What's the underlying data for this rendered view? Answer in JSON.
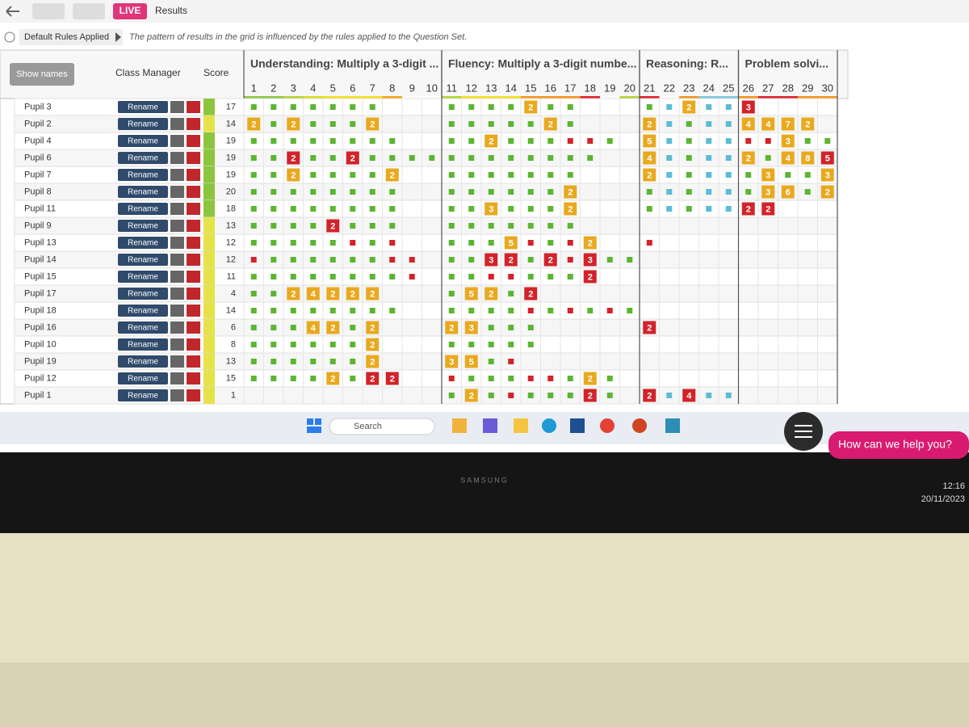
{
  "top_bar": {
    "live": "LIVE",
    "tab": "Results"
  },
  "rules": {
    "badge": "Default Rules Applied",
    "note": "The pattern of results in the grid is influenced by the rules applied to the Question Set."
  },
  "columns": {
    "show_names": "Show names",
    "class_manager": "Class Manager",
    "score": "Score"
  },
  "rename_label": "Rename",
  "groups": [
    {
      "title": "Understanding: Multiply a 3-digit ...",
      "questions": [
        {
          "number": 1,
          "color": "#8cc63f"
        },
        {
          "number": 2,
          "color": "#8cc63f"
        },
        {
          "number": 3,
          "color": "#b5d334"
        },
        {
          "number": 4,
          "color": "#d6e021"
        },
        {
          "number": 5,
          "color": "#f2e01e"
        },
        {
          "number": 6,
          "color": "#f2e01e"
        },
        {
          "number": 7,
          "color": "#f2e01e"
        },
        {
          "number": 8,
          "color": "#f7a21b"
        },
        {
          "number": 9,
          "color": "#ffffff"
        },
        {
          "number": 10,
          "color": "#ffffff"
        }
      ]
    },
    {
      "title": "Fluency: Multiply a 3-digit numbe...",
      "questions": [
        {
          "number": 11,
          "color": "#b5d334"
        },
        {
          "number": 12,
          "color": "#f2e01e"
        },
        {
          "number": 13,
          "color": "#f2e01e"
        },
        {
          "number": 14,
          "color": "#f2e01e"
        },
        {
          "number": 15,
          "color": "#f7941d"
        },
        {
          "number": 16,
          "color": "#f7941d"
        },
        {
          "number": 17,
          "color": "#f7941d"
        },
        {
          "number": 18,
          "color": "#e0202a"
        },
        {
          "number": 19,
          "color": "#ffffff"
        },
        {
          "number": 20,
          "color": "#b5d334"
        }
      ]
    },
    {
      "title": "Reasoning: R...",
      "questions": [
        {
          "number": 21,
          "color": "#e0202a"
        },
        {
          "number": 22,
          "color": "#ffffff"
        },
        {
          "number": 23,
          "color": "#f7941d"
        },
        {
          "number": 24,
          "color": "#7fc8e0"
        },
        {
          "number": 25,
          "color": "#7fc8e0"
        }
      ]
    },
    {
      "title": "Problem solvi...",
      "questions": [
        {
          "number": 26,
          "color": "#f7941d"
        },
        {
          "number": 27,
          "color": "#e0202a"
        },
        {
          "number": 28,
          "color": "#e0202a"
        },
        {
          "number": 29,
          "color": "#f7941d"
        },
        {
          "number": 30,
          "color": "#f7941d"
        }
      ]
    }
  ],
  "rows": [
    {
      "name": "Pupil 3",
      "score": 17,
      "cells": [
        "green",
        "green",
        "green",
        "green",
        "green",
        "green",
        "green",
        null,
        null,
        null,
        "green",
        "green",
        "green",
        "green",
        {
          "value": 2,
          "color": "amber"
        },
        "green",
        "green",
        null,
        null,
        null,
        "green",
        "blue",
        {
          "value": 2,
          "color": "amber"
        },
        "blue",
        "blue",
        {
          "value": 3,
          "color": "red"
        },
        null,
        null,
        null,
        null
      ]
    },
    {
      "name": "Pupil 2",
      "score": 14,
      "cells": [
        {
          "value": 2,
          "color": "amber"
        },
        "green",
        {
          "value": 2,
          "color": "amber"
        },
        "green",
        "green",
        "green",
        {
          "value": 2,
          "color": "amber"
        },
        null,
        null,
        null,
        "green",
        "green",
        "green",
        "green",
        "green",
        {
          "value": 2,
          "color": "amber"
        },
        "green",
        null,
        null,
        null,
        {
          "value": 2,
          "color": "amber"
        },
        "blue",
        "green",
        "blue",
        "blue",
        {
          "value": 4,
          "color": "amber"
        },
        {
          "value": 4,
          "color": "amber"
        },
        {
          "value": 7,
          "color": "amber"
        },
        {
          "value": 2,
          "color": "amber"
        },
        null
      ]
    },
    {
      "name": "Pupil 4",
      "score": 19,
      "cells": [
        "green",
        "green",
        "green",
        "green",
        "green",
        "green",
        "green",
        "green",
        null,
        null,
        "green",
        "green",
        {
          "value": 2,
          "color": "amber"
        },
        "green",
        "green",
        "green",
        "red",
        "red",
        "green",
        null,
        {
          "value": 5,
          "color": "amber"
        },
        "blue",
        "green",
        "blue",
        "blue",
        "red",
        "red",
        {
          "value": 3,
          "color": "amber"
        },
        "green",
        "green"
      ]
    },
    {
      "name": "Pupil 6",
      "score": 19,
      "cells": [
        "green",
        "green",
        {
          "value": 2,
          "color": "red"
        },
        "green",
        "green",
        {
          "value": 2,
          "color": "red"
        },
        "green",
        "green",
        "green",
        "green",
        "green",
        "green",
        "green",
        "green",
        "green",
        "green",
        "green",
        "green",
        null,
        null,
        {
          "value": 4,
          "color": "amber"
        },
        "blue",
        "green",
        "blue",
        "blue",
        {
          "value": 2,
          "color": "amber"
        },
        "green",
        {
          "value": 4,
          "color": "amber"
        },
        {
          "value": 8,
          "color": "amber"
        },
        {
          "value": 5,
          "color": "red"
        }
      ]
    },
    {
      "name": "Pupil 7",
      "score": 19,
      "cells": [
        "green",
        "green",
        {
          "value": 2,
          "color": "amber"
        },
        "green",
        "green",
        "green",
        "green",
        {
          "value": 2,
          "color": "amber"
        },
        null,
        null,
        "green",
        "green",
        "green",
        "green",
        "green",
        "green",
        "green",
        null,
        null,
        null,
        {
          "value": 2,
          "color": "amber"
        },
        "blue",
        "green",
        "blue",
        "blue",
        "green",
        {
          "value": 3,
          "color": "amber"
        },
        "green",
        "green",
        {
          "value": 3,
          "color": "amber"
        }
      ]
    },
    {
      "name": "Pupil 8",
      "score": 20,
      "cells": [
        "green",
        "green",
        "green",
        "green",
        "green",
        "green",
        "green",
        "green",
        null,
        null,
        "green",
        "green",
        "green",
        "green",
        "green",
        "green",
        {
          "value": 2,
          "color": "amber"
        },
        null,
        null,
        null,
        "green",
        "blue",
        "green",
        "blue",
        "blue",
        "green",
        {
          "value": 3,
          "color": "amber"
        },
        {
          "value": 6,
          "color": "amber"
        },
        "green",
        {
          "value": 2,
          "color": "amber"
        }
      ]
    },
    {
      "name": "Pupil 11",
      "score": 18,
      "cells": [
        "green",
        "green",
        "green",
        "green",
        "green",
        "green",
        "green",
        "green",
        null,
        null,
        "green",
        "green",
        {
          "value": 3,
          "color": "amber"
        },
        "green",
        "green",
        "green",
        {
          "value": 2,
          "color": "amber"
        },
        null,
        null,
        null,
        "green",
        "blue",
        "green",
        "blue",
        "blue",
        {
          "value": 2,
          "color": "red"
        },
        {
          "value": 2,
          "color": "red"
        },
        null,
        null,
        null
      ]
    },
    {
      "name": "Pupil 9",
      "score": 13,
      "cells": [
        "green",
        "green",
        "green",
        "green",
        {
          "value": 2,
          "color": "red"
        },
        "green",
        "green",
        "green",
        null,
        null,
        "green",
        "green",
        "green",
        "green",
        "green",
        "green",
        "green",
        null,
        null,
        null,
        null,
        null,
        null,
        null,
        null,
        null,
        null,
        null,
        null,
        null
      ]
    },
    {
      "name": "Pupil 13",
      "score": 12,
      "cells": [
        "green",
        "green",
        "green",
        "green",
        "green",
        "red",
        "green",
        "red",
        null,
        null,
        "green",
        "green",
        "green",
        {
          "value": 5,
          "color": "amber"
        },
        "red",
        "green",
        "red",
        {
          "value": 2,
          "color": "amber"
        },
        null,
        null,
        "red",
        null,
        null,
        null,
        null,
        null,
        null,
        null,
        null,
        null
      ]
    },
    {
      "name": "Pupil 14",
      "score": 12,
      "cells": [
        "red",
        "green",
        "green",
        "green",
        "green",
        "green",
        "green",
        "red",
        "red",
        null,
        "green",
        "green",
        {
          "value": 3,
          "color": "red"
        },
        {
          "value": 2,
          "color": "red"
        },
        "green",
        {
          "value": 2,
          "color": "red"
        },
        "red",
        {
          "value": 3,
          "color": "red"
        },
        "green",
        "green",
        null,
        null,
        null,
        null,
        null,
        null,
        null,
        null,
        null,
        null
      ]
    },
    {
      "name": "Pupil 15",
      "score": 11,
      "cells": [
        "green",
        "green",
        "green",
        "green",
        "green",
        "green",
        "green",
        "green",
        "red",
        null,
        "green",
        "green",
        "red",
        "red",
        "green",
        "green",
        "green",
        {
          "value": 2,
          "color": "red"
        },
        null,
        null,
        null,
        null,
        null,
        null,
        null,
        null,
        null,
        null,
        null,
        null
      ]
    },
    {
      "name": "Pupil 17",
      "score": 4,
      "cells": [
        "green",
        "green",
        {
          "value": 2,
          "color": "amber"
        },
        {
          "value": 4,
          "color": "amber"
        },
        {
          "value": 2,
          "color": "amber"
        },
        {
          "value": 2,
          "color": "amber"
        },
        {
          "value": 2,
          "color": "amber"
        },
        null,
        null,
        null,
        "green",
        {
          "value": 5,
          "color": "amber"
        },
        {
          "value": 2,
          "color": "amber"
        },
        "green",
        {
          "value": 2,
          "color": "red"
        },
        null,
        null,
        null,
        null,
        null,
        null,
        null,
        null,
        null,
        null,
        null,
        null,
        null,
        null,
        null
      ]
    },
    {
      "name": "Pupil 18",
      "score": 14,
      "cells": [
        "green",
        "green",
        "green",
        "green",
        "green",
        "green",
        "green",
        "green",
        null,
        null,
        "green",
        "green",
        "green",
        "green",
        "red",
        "green",
        "red",
        "green",
        "red",
        "green",
        null,
        null,
        null,
        null,
        null,
        null,
        null,
        null,
        null,
        null
      ]
    },
    {
      "name": "Pupil 16",
      "score": 6,
      "cells": [
        "green",
        "green",
        "green",
        {
          "value": 4,
          "color": "amber"
        },
        {
          "value": 2,
          "color": "amber"
        },
        "green",
        {
          "value": 2,
          "color": "amber"
        },
        null,
        null,
        null,
        {
          "value": 2,
          "color": "amber"
        },
        {
          "value": 3,
          "color": "amber"
        },
        "green",
        "green",
        "green",
        null,
        null,
        null,
        null,
        null,
        {
          "value": 2,
          "color": "red"
        },
        null,
        null,
        null,
        null,
        null,
        null,
        null,
        null,
        null
      ]
    },
    {
      "name": "Pupil 10",
      "score": 8,
      "cells": [
        "green",
        "green",
        "green",
        "green",
        "green",
        "green",
        {
          "value": 2,
          "color": "amber"
        },
        null,
        null,
        null,
        "green",
        "green",
        "green",
        "green",
        "green",
        null,
        null,
        null,
        null,
        null,
        null,
        null,
        null,
        null,
        null,
        null,
        null,
        null,
        null,
        null
      ]
    },
    {
      "name": "Pupil 19",
      "score": 13,
      "cells": [
        "green",
        "green",
        "green",
        "green",
        "green",
        "green",
        {
          "value": 2,
          "color": "amber"
        },
        null,
        null,
        null,
        {
          "value": 3,
          "color": "amber"
        },
        {
          "value": 5,
          "color": "amber"
        },
        "green",
        "red",
        null,
        null,
        null,
        null,
        null,
        null,
        null,
        null,
        null,
        null,
        null,
        null,
        null,
        null,
        null,
        null
      ]
    },
    {
      "name": "Pupil 12",
      "score": 15,
      "cells": [
        "green",
        "green",
        "green",
        "green",
        {
          "value": 2,
          "color": "amber"
        },
        "green",
        {
          "value": 2,
          "color": "red"
        },
        {
          "value": 2,
          "color": "red"
        },
        null,
        null,
        "red",
        "green",
        "green",
        "green",
        "red",
        "red",
        "green",
        {
          "value": 2,
          "color": "amber"
        },
        "green",
        null,
        null,
        null,
        null,
        null,
        null,
        null,
        null,
        null,
        null,
        null
      ]
    },
    {
      "name": "Pupil 1",
      "score": 1,
      "cells": [
        null,
        null,
        null,
        null,
        null,
        null,
        null,
        null,
        null,
        null,
        "green",
        {
          "value": 2,
          "color": "amber"
        },
        "green",
        "red",
        "green",
        "green",
        "green",
        {
          "value": 2,
          "color": "red"
        },
        "green",
        null,
        {
          "value": 2,
          "color": "red"
        },
        "blue",
        {
          "value": 4,
          "color": "red"
        },
        "blue",
        "blue",
        null,
        null,
        null,
        null,
        null
      ]
    }
  ],
  "taskbar": {
    "search": "Search",
    "help": "How can we help you?",
    "time": "12:16",
    "date": "20/11/2023"
  },
  "bezel": {
    "brand": "SAMSUNG"
  }
}
